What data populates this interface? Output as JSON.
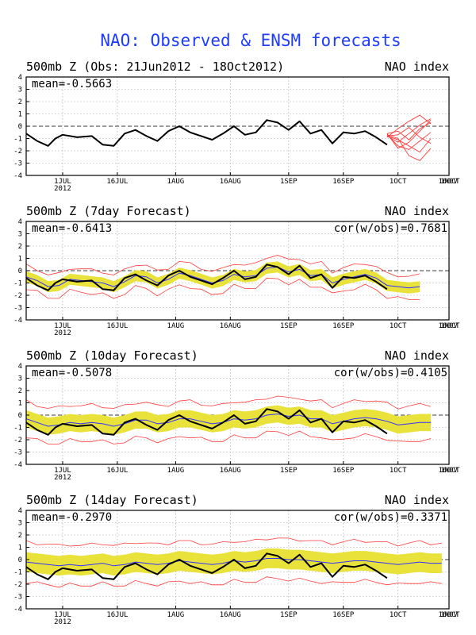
{
  "title": "NAO: Observed & ENSM forecasts",
  "colors": {
    "title": "#1e3cff",
    "observed": "#000000",
    "ensemble_mean": "#3333ff",
    "spread_fill": "#e8e23a",
    "members": "#ff3b3b",
    "grid": "#9a9a9a"
  },
  "chart_data": [
    {
      "type": "line",
      "title": "500mb Z (Obs: 21Jun2012 - 18Oct2012)",
      "right_label": "NAO index",
      "stat_left": "mean=-0.5663",
      "stat_right": "",
      "x_ticks": [
        "1JUL",
        "16JUL",
        "1AUG",
        "16AUG",
        "1SEP",
        "16SEP",
        "1OCT",
        "16OCT",
        "1NOV"
      ],
      "x_year": "2012",
      "ylim": [
        -4,
        4
      ],
      "y_ticks": [
        -4,
        -3,
        -2,
        -1,
        0,
        1,
        2,
        3,
        4
      ],
      "grid": true,
      "observed": {
        "x": [
          21,
          24,
          27,
          29,
          31,
          35,
          39,
          42,
          45,
          48,
          51,
          54,
          57,
          60,
          63,
          66,
          69,
          72,
          75,
          78,
          81,
          84,
          87,
          90,
          93,
          96,
          99,
          102,
          105,
          108,
          111,
          114,
          117,
          120
        ],
        "y": [
          -0.6,
          -1.2,
          -1.6,
          -1.0,
          -0.7,
          -0.9,
          -0.8,
          -1.5,
          -1.6,
          -0.6,
          -0.3,
          -0.8,
          -1.2,
          -0.4,
          0.0,
          -0.5,
          -0.8,
          -1.1,
          -0.6,
          0.0,
          -0.7,
          -0.5,
          0.5,
          0.3,
          -0.3,
          0.4,
          -0.6,
          -0.3,
          -1.4,
          -0.5,
          -0.6,
          -0.4,
          -0.9,
          -1.5
        ]
      },
      "forecast_members": [
        {
          "x": [
            120,
            123,
            126,
            129,
            132
          ],
          "y": [
            -0.8,
            -1.3,
            -0.6,
            0.1,
            0.6
          ]
        },
        {
          "x": [
            120,
            123,
            126,
            129,
            132
          ],
          "y": [
            -0.6,
            -0.4,
            -1.1,
            -0.2,
            0.3
          ]
        },
        {
          "x": [
            120,
            123,
            126,
            129,
            132
          ],
          "y": [
            -0.7,
            -1.6,
            -1.9,
            -1.2,
            -0.5
          ]
        },
        {
          "x": [
            120,
            123,
            126,
            129,
            132
          ],
          "y": [
            -0.9,
            -0.2,
            0.4,
            0.9,
            0.2
          ]
        },
        {
          "x": [
            120,
            123,
            126,
            129,
            132
          ],
          "y": [
            -0.7,
            -1.0,
            -2.4,
            -2.8,
            -1.8
          ]
        },
        {
          "x": [
            120,
            123,
            126,
            129,
            132
          ],
          "y": [
            -0.8,
            -0.7,
            -0.1,
            -0.9,
            -1.4
          ]
        },
        {
          "x": [
            120,
            123,
            126,
            129,
            132
          ],
          "y": [
            -0.6,
            -1.8,
            -1.3,
            -0.4,
            0.5
          ]
        },
        {
          "x": [
            120,
            123,
            126,
            129,
            132
          ],
          "y": [
            -0.8,
            -1.1,
            -1.6,
            -2.1,
            -1.0
          ]
        }
      ]
    },
    {
      "type": "line",
      "title": "500mb Z (7day Forecast)",
      "right_label": "NAO index",
      "stat_left": "mean=-0.6413",
      "stat_right": "cor(w/obs)=0.7681",
      "x_ticks": [
        "1JUL",
        "16JUL",
        "1AUG",
        "16AUG",
        "1SEP",
        "16SEP",
        "1OCT",
        "16OCT",
        "1NOV"
      ],
      "x_year": "2012",
      "ylim": [
        -4,
        4
      ],
      "y_ticks": [
        -4,
        -3,
        -2,
        -1,
        0,
        1,
        2,
        3,
        4
      ],
      "grid": true,
      "observed": {
        "x": [
          21,
          24,
          27,
          29,
          31,
          35,
          39,
          42,
          45,
          48,
          51,
          54,
          57,
          60,
          63,
          66,
          69,
          72,
          75,
          78,
          81,
          84,
          87,
          90,
          93,
          96,
          99,
          102,
          105,
          108,
          111,
          114,
          117,
          120
        ],
        "y": [
          -0.6,
          -1.2,
          -1.6,
          -1.0,
          -0.7,
          -0.9,
          -0.8,
          -1.5,
          -1.6,
          -0.6,
          -0.3,
          -0.8,
          -1.2,
          -0.4,
          0.0,
          -0.5,
          -0.8,
          -1.1,
          -0.6,
          0.0,
          -0.7,
          -0.5,
          0.5,
          0.3,
          -0.3,
          0.4,
          -0.6,
          -0.3,
          -1.4,
          -0.5,
          -0.6,
          -0.4,
          -0.9,
          -1.5
        ]
      },
      "ensemble_mean": {
        "x": [
          21,
          24,
          27,
          30,
          33,
          36,
          39,
          42,
          45,
          48,
          51,
          54,
          57,
          60,
          63,
          66,
          69,
          72,
          75,
          78,
          81,
          84,
          87,
          90,
          93,
          96,
          99,
          102,
          105,
          108,
          111,
          114,
          117,
          120,
          123,
          126,
          129
        ],
        "y": [
          -0.5,
          -0.8,
          -1.3,
          -1.2,
          -0.7,
          -0.8,
          -0.9,
          -1.0,
          -1.3,
          -0.9,
          -0.4,
          -0.5,
          -1.0,
          -0.7,
          -0.2,
          -0.4,
          -0.7,
          -1.0,
          -0.8,
          -0.3,
          -0.5,
          -0.4,
          0.2,
          0.3,
          -0.1,
          0.1,
          -0.4,
          -0.3,
          -1.0,
          -0.7,
          -0.5,
          -0.3,
          -0.6,
          -1.2,
          -1.3,
          -1.4,
          -1.3
        ]
      },
      "spread_half_width": 0.45,
      "envelope_half_width": 0.9
    },
    {
      "type": "line",
      "title": "500mb Z (10day Forecast)",
      "right_label": "NAO index",
      "stat_left": "mean=-0.5078",
      "stat_right": "cor(w/obs)=0.4105",
      "x_ticks": [
        "1JUL",
        "16JUL",
        "1AUG",
        "16AUG",
        "1SEP",
        "16SEP",
        "1OCT",
        "16OCT",
        "1NOV"
      ],
      "x_year": "2012",
      "ylim": [
        -4,
        4
      ],
      "y_ticks": [
        -4,
        -3,
        -2,
        -1,
        0,
        1,
        2,
        3,
        4
      ],
      "grid": true,
      "observed": {
        "x": [
          21,
          24,
          27,
          29,
          31,
          35,
          39,
          42,
          45,
          48,
          51,
          54,
          57,
          60,
          63,
          66,
          69,
          72,
          75,
          78,
          81,
          84,
          87,
          90,
          93,
          96,
          99,
          102,
          105,
          108,
          111,
          114,
          117,
          120
        ],
        "y": [
          -0.6,
          -1.2,
          -1.6,
          -1.0,
          -0.7,
          -0.9,
          -0.8,
          -1.5,
          -1.6,
          -0.6,
          -0.3,
          -0.8,
          -1.2,
          -0.4,
          0.0,
          -0.5,
          -0.8,
          -1.1,
          -0.6,
          0.0,
          -0.7,
          -0.5,
          0.5,
          0.3,
          -0.3,
          0.4,
          -0.6,
          -0.3,
          -1.4,
          -0.5,
          -0.6,
          -0.4,
          -0.9,
          -1.5
        ]
      },
      "ensemble_mean": {
        "x": [
          21,
          24,
          27,
          30,
          33,
          36,
          39,
          42,
          45,
          48,
          51,
          54,
          57,
          60,
          63,
          66,
          69,
          72,
          75,
          78,
          81,
          84,
          87,
          90,
          93,
          96,
          99,
          102,
          105,
          108,
          111,
          114,
          117,
          120,
          123,
          126,
          129,
          132
        ],
        "y": [
          -0.3,
          -0.6,
          -0.9,
          -0.8,
          -0.6,
          -0.7,
          -0.6,
          -0.7,
          -0.9,
          -0.7,
          -0.4,
          -0.4,
          -0.7,
          -0.6,
          -0.3,
          -0.3,
          -0.5,
          -0.7,
          -0.6,
          -0.3,
          -0.4,
          -0.3,
          0.0,
          0.1,
          -0.1,
          0.0,
          -0.3,
          -0.3,
          -0.7,
          -0.5,
          -0.3,
          -0.2,
          -0.3,
          -0.5,
          -0.8,
          -0.7,
          -0.6,
          -0.6
        ]
      },
      "spread_half_width": 0.7,
      "envelope_half_width": 1.4
    },
    {
      "type": "line",
      "title": "500mb Z (14day Forecast)",
      "right_label": "NAO index",
      "stat_left": "mean=-0.2970",
      "stat_right": "cor(w/obs)=0.3371",
      "x_ticks": [
        "1JUL",
        "16JUL",
        "1AUG",
        "16AUG",
        "1SEP",
        "16SEP",
        "1OCT",
        "16OCT",
        "1NOV"
      ],
      "x_year": "2012",
      "ylim": [
        -4,
        4
      ],
      "y_ticks": [
        -4,
        -3,
        -2,
        -1,
        0,
        1,
        2,
        3,
        4
      ],
      "grid": true,
      "observed": {
        "x": [
          21,
          24,
          27,
          29,
          31,
          35,
          39,
          42,
          45,
          48,
          51,
          54,
          57,
          60,
          63,
          66,
          69,
          72,
          75,
          78,
          81,
          84,
          87,
          90,
          93,
          96,
          99,
          102,
          105,
          108,
          111,
          114,
          117,
          120
        ],
        "y": [
          -0.6,
          -1.2,
          -1.6,
          -1.0,
          -0.7,
          -0.9,
          -0.8,
          -1.5,
          -1.6,
          -0.6,
          -0.3,
          -0.8,
          -1.2,
          -0.4,
          0.0,
          -0.5,
          -0.8,
          -1.1,
          -0.6,
          0.0,
          -0.7,
          -0.5,
          0.5,
          0.3,
          -0.3,
          0.4,
          -0.6,
          -0.3,
          -1.4,
          -0.5,
          -0.6,
          -0.4,
          -0.9,
          -1.5
        ]
      },
      "ensemble_mean": {
        "x": [
          21,
          24,
          27,
          30,
          33,
          36,
          39,
          42,
          45,
          48,
          51,
          54,
          57,
          60,
          63,
          66,
          69,
          72,
          75,
          78,
          81,
          84,
          87,
          90,
          93,
          96,
          99,
          102,
          105,
          108,
          111,
          114,
          117,
          120,
          123,
          126,
          129,
          132,
          135
        ],
        "y": [
          -0.2,
          -0.3,
          -0.4,
          -0.5,
          -0.4,
          -0.5,
          -0.4,
          -0.3,
          -0.5,
          -0.4,
          -0.2,
          -0.3,
          -0.4,
          -0.3,
          -0.1,
          -0.2,
          -0.3,
          -0.4,
          -0.3,
          -0.1,
          -0.2,
          -0.1,
          0.1,
          0.1,
          0.0,
          0.0,
          -0.1,
          -0.2,
          -0.3,
          -0.2,
          -0.1,
          -0.1,
          -0.2,
          -0.3,
          -0.4,
          -0.3,
          -0.2,
          -0.3,
          -0.3
        ]
      },
      "spread_half_width": 0.8,
      "envelope_half_width": 1.6
    }
  ]
}
